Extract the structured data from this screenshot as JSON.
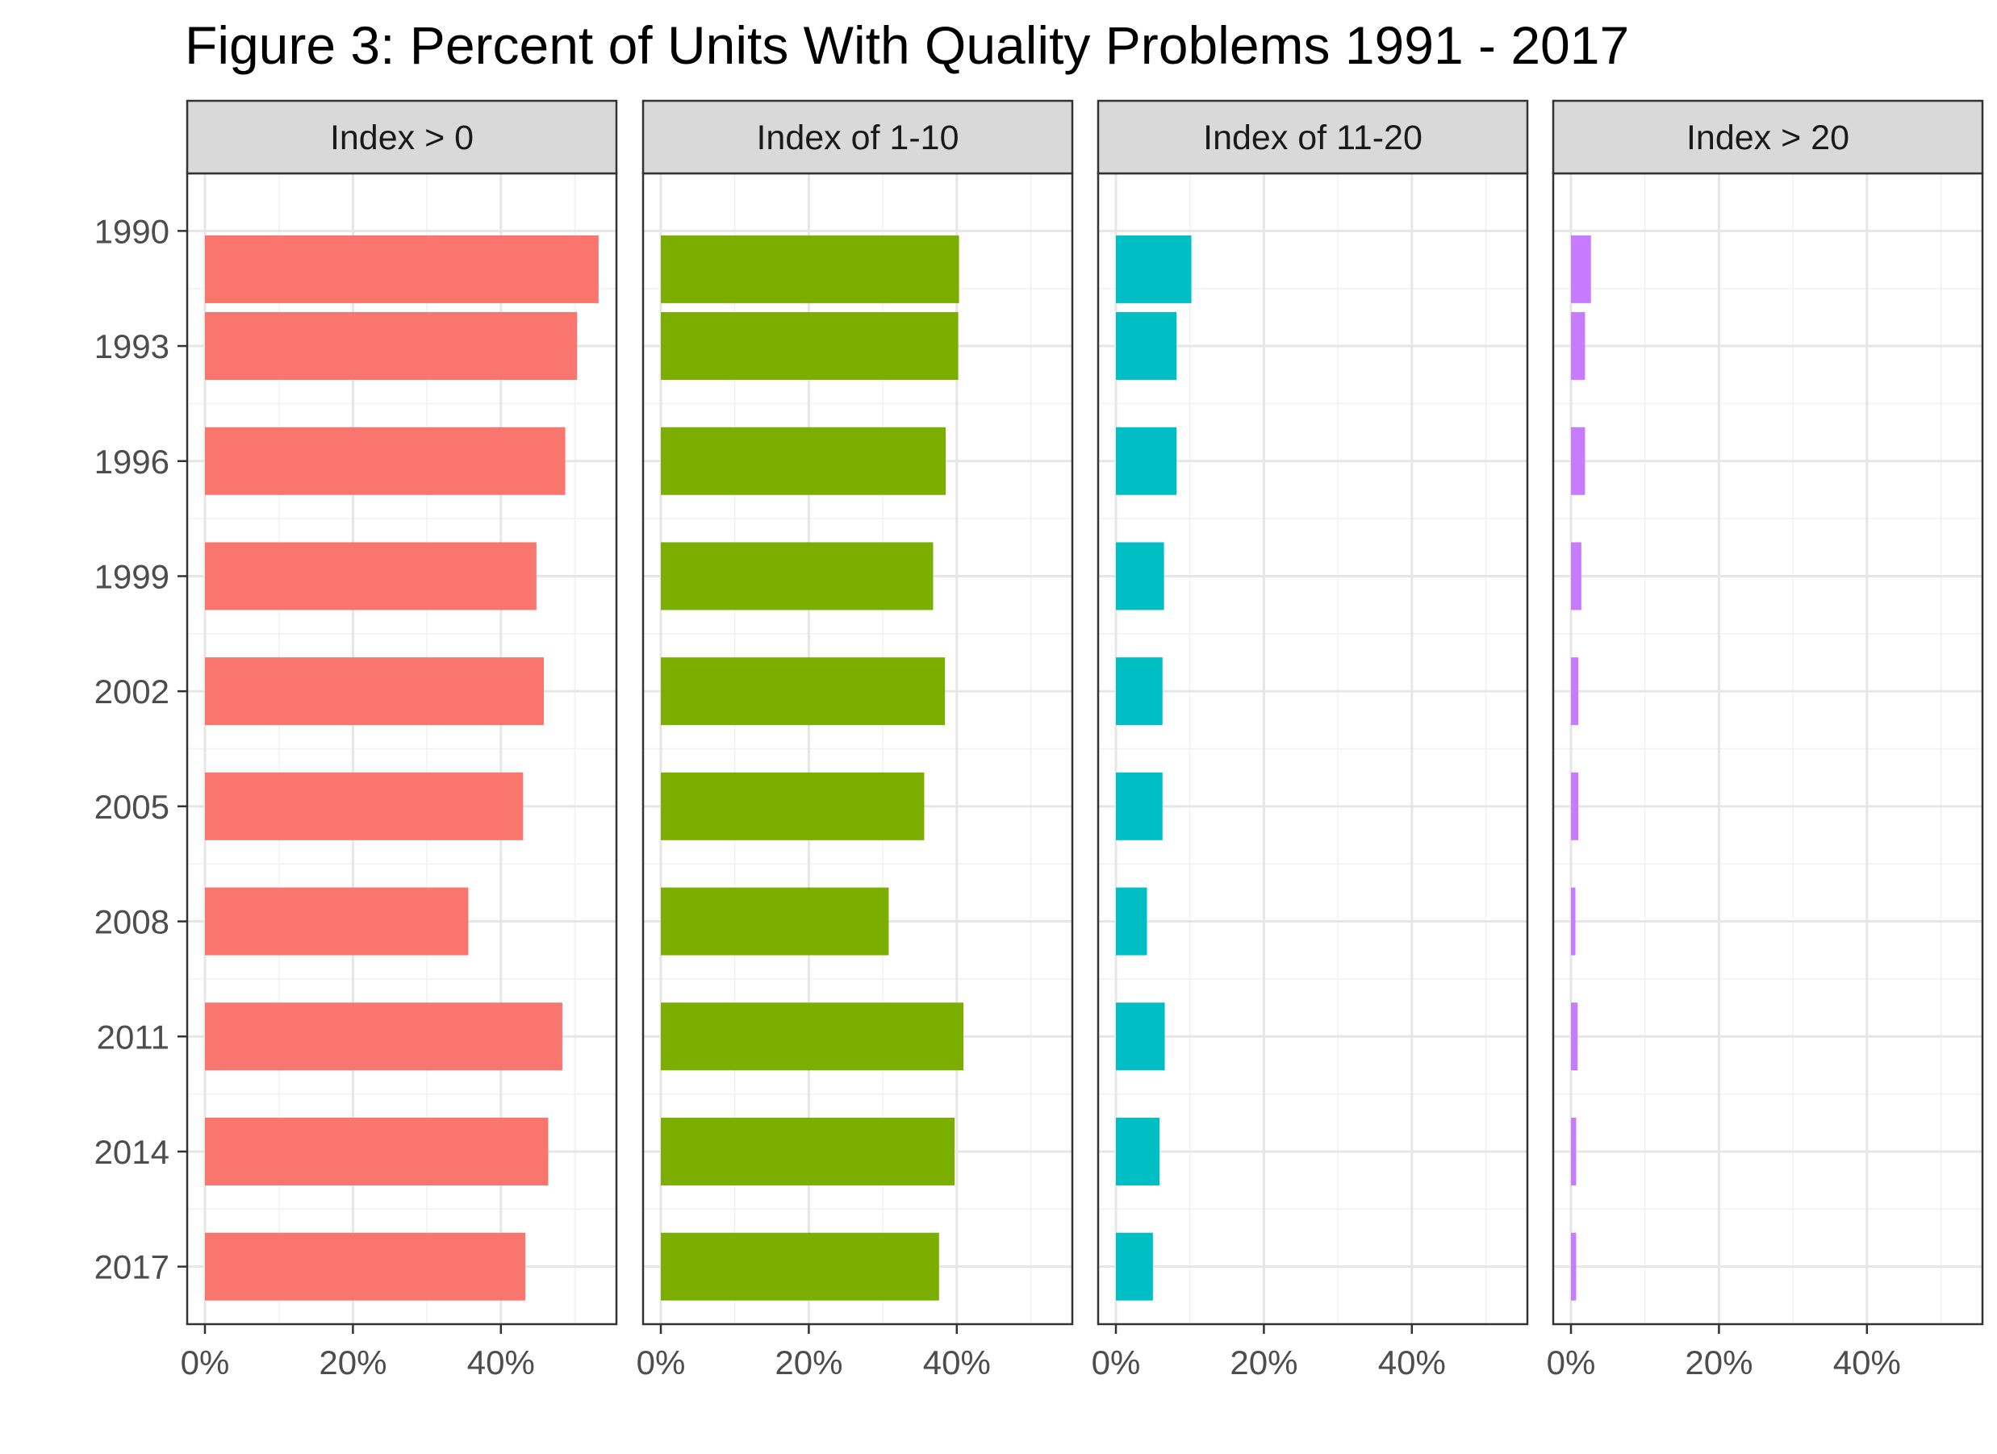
{
  "chart_data": {
    "type": "bar",
    "orientation": "horizontal",
    "title": "Figure 3: Percent of Units With Quality Problems 1991 - 2017",
    "xlabel": "",
    "ylabel": "",
    "xlim": [
      0,
      55
    ],
    "x_ticks": [
      {
        "value": 0,
        "label": "0%"
      },
      {
        "value": 20,
        "label": "20%"
      },
      {
        "value": 40,
        "label": "40%"
      }
    ],
    "y_axis_type": "date",
    "y_range": [
      1988.5,
      2018.5
    ],
    "y_ticks": [
      "1990",
      "1993",
      "1996",
      "1999",
      "2002",
      "2005",
      "2008",
      "2011",
      "2014",
      "2017"
    ],
    "grid": true,
    "legend": "none",
    "panels": [
      {
        "label": "Index > 0",
        "color": "#F8766D",
        "bars": [
          {
            "year": "1991",
            "value": 53.2
          },
          {
            "year": "1993",
            "value": 50.3
          },
          {
            "year": "1996",
            "value": 48.7
          },
          {
            "year": "1999",
            "value": 44.8
          },
          {
            "year": "2002",
            "value": 45.8
          },
          {
            "year": "2005",
            "value": 43.0
          },
          {
            "year": "2008",
            "value": 35.6
          },
          {
            "year": "2011",
            "value": 48.3
          },
          {
            "year": "2014",
            "value": 46.4
          },
          {
            "year": "2017",
            "value": 43.3
          }
        ]
      },
      {
        "label": "Index of 1-10",
        "color": "#7CAE00",
        "bars": [
          {
            "year": "1991",
            "value": 40.3
          },
          {
            "year": "1993",
            "value": 40.2
          },
          {
            "year": "1996",
            "value": 38.5
          },
          {
            "year": "1999",
            "value": 36.8
          },
          {
            "year": "2002",
            "value": 38.4
          },
          {
            "year": "2005",
            "value": 35.6
          },
          {
            "year": "2008",
            "value": 30.8
          },
          {
            "year": "2011",
            "value": 40.9
          },
          {
            "year": "2014",
            "value": 39.7
          },
          {
            "year": "2017",
            "value": 37.6
          }
        ]
      },
      {
        "label": "Index of 11-20",
        "color": "#00BFC4",
        "bars": [
          {
            "year": "1991",
            "value": 10.2
          },
          {
            "year": "1993",
            "value": 8.2
          },
          {
            "year": "1996",
            "value": 8.2
          },
          {
            "year": "1999",
            "value": 6.5
          },
          {
            "year": "2002",
            "value": 6.3
          },
          {
            "year": "2005",
            "value": 6.3
          },
          {
            "year": "2008",
            "value": 4.2
          },
          {
            "year": "2011",
            "value": 6.6
          },
          {
            "year": "2014",
            "value": 5.9
          },
          {
            "year": "2017",
            "value": 5.0
          }
        ]
      },
      {
        "label": "Index > 20",
        "color": "#C77CFF",
        "bars": [
          {
            "year": "1991",
            "value": 2.7
          },
          {
            "year": "1993",
            "value": 1.9
          },
          {
            "year": "1996",
            "value": 1.9
          },
          {
            "year": "1999",
            "value": 1.4
          },
          {
            "year": "2002",
            "value": 1.0
          },
          {
            "year": "2005",
            "value": 1.0
          },
          {
            "year": "2008",
            "value": 0.6
          },
          {
            "year": "2011",
            "value": 0.9
          },
          {
            "year": "2014",
            "value": 0.7
          },
          {
            "year": "2017",
            "value": 0.7
          }
        ]
      }
    ]
  }
}
